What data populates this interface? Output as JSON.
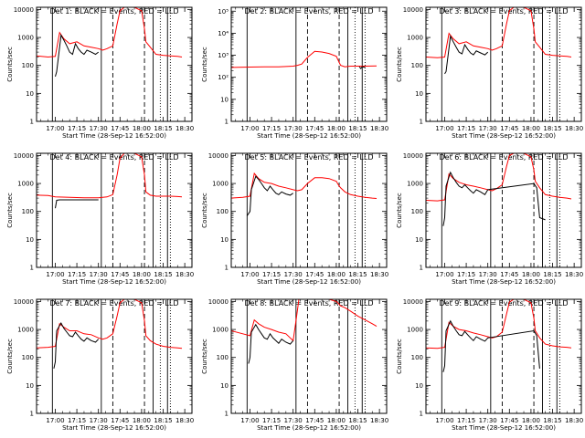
{
  "chart_data": {
    "type": "line",
    "xlabel": "Start Time (28-Sep-12 16:52:00)",
    "ylabel": "Counts/sec",
    "x_tick_labels": [
      "17:00",
      "17:15",
      "17:30",
      "17:45",
      "18:00",
      "18:15",
      "18:30"
    ],
    "y_tick_labels": [
      "1",
      "10",
      "100",
      "1000",
      "10000"
    ],
    "y_tick_labels_alt": [
      "1",
      "10",
      "10²",
      "10³",
      "10⁴",
      "10⁵"
    ],
    "x_unit": "minutes after 17:00",
    "xlim": [
      -13,
      95
    ],
    "log_y": true,
    "colors": {
      "events": "#000000",
      "lld": "#ff0000",
      "axes": "#000000"
    },
    "panels": [
      {
        "title": "Det 1: BLACK = Events, RED = LLD",
        "ylim": [
          1,
          12000
        ],
        "series": [
          {
            "name": "BLACK = Events",
            "x": [
              0,
              1,
              4,
              6,
              8,
              10,
              12,
              14,
              16,
              18,
              20,
              22,
              25,
              28,
              30
            ],
            "y": [
              40,
              60,
              1200,
              800,
              500,
              300,
              250,
              600,
              400,
              300,
              250,
              350,
              300,
              250,
              300
            ]
          },
          {
            "name": "RED = LLD",
            "x": [
              -13,
              -5,
              0,
              3,
              6,
              10,
              15,
              20,
              25,
              30,
              33,
              36,
              40,
              43,
              45,
              48,
              50,
              55,
              60,
              62,
              63,
              66,
              70,
              75,
              80,
              85,
              88
            ],
            "y": [
              220,
              200,
              210,
              1500,
              900,
              600,
              700,
              500,
              450,
              400,
              350,
              400,
              500,
              3000,
              9000,
              12000,
              12000,
              12000,
              9000,
              2000,
              700,
              450,
              250,
              230,
              220,
              210,
              200
            ]
          }
        ]
      },
      {
        "title": "Det 2: BLACK = Events, RED = LLD",
        "ylim": [
          1,
          150000
        ],
        "series": [
          {
            "name": "BLACK = Events",
            "x": [
              76,
              77,
              78,
              80
            ],
            "y": [
              300,
              250,
              300,
              280
            ]
          },
          {
            "name": "RED = LLD",
            "x": [
              -13,
              0,
              10,
              20,
              30,
              33,
              36,
              40,
              45,
              50,
              55,
              60,
              63,
              66,
              70,
              80,
              88
            ],
            "y": [
              280,
              290,
              300,
              300,
              320,
              350,
              400,
              800,
              1500,
              1400,
              1200,
              900,
              350,
              300,
              320,
              320,
              330
            ]
          }
        ]
      },
      {
        "title": "Det 3: BLACK = Events, RED = LLD",
        "ylim": [
          1,
          12000
        ],
        "series": [
          {
            "name": "BLACK = Events",
            "x": [
              0,
              1,
              4,
              6,
              8,
              10,
              12,
              14,
              16,
              18,
              20,
              22,
              25,
              28,
              30
            ],
            "y": [
              50,
              60,
              1100,
              700,
              450,
              300,
              260,
              550,
              380,
              280,
              240,
              330,
              280,
              240,
              300
            ]
          },
          {
            "name": "RED = LLD",
            "x": [
              -13,
              -5,
              0,
              3,
              6,
              10,
              15,
              20,
              25,
              30,
              33,
              36,
              40,
              43,
              45,
              48,
              50,
              55,
              60,
              62,
              63,
              66,
              70,
              75,
              80,
              85,
              88
            ],
            "y": [
              200,
              190,
              200,
              1400,
              900,
              600,
              700,
              500,
              450,
              400,
              350,
              400,
              500,
              3000,
              9000,
              12000,
              12000,
              12000,
              9000,
              2000,
              700,
              450,
              250,
              230,
              220,
              210,
              200
            ]
          }
        ]
      },
      {
        "title": "Det 4: BLACK = Events, RED = LLD",
        "ylim": [
          1,
          12000
        ],
        "series": [
          {
            "name": "BLACK = Events",
            "x": [
              0,
              1,
              3,
              10,
              20,
              30
            ],
            "y": [
              130,
              250,
              260,
              260,
              260,
              260
            ]
          },
          {
            "name": "RED = LLD",
            "x": [
              -13,
              -5,
              0,
              10,
              20,
              30,
              33,
              36,
              40,
              43,
              45,
              48,
              50,
              55,
              60,
              62,
              63,
              66,
              70,
              75,
              80,
              85,
              88
            ],
            "y": [
              380,
              370,
              330,
              320,
              310,
              310,
              320,
              330,
              400,
              2000,
              8000,
              12000,
              12000,
              12000,
              9000,
              2000,
              500,
              380,
              350,
              350,
              350,
              340,
              330
            ]
          }
        ]
      },
      {
        "title": "Det 5: BLACK = Events, RED = LLD",
        "ylim": [
          1,
          12000
        ],
        "series": [
          {
            "name": "BLACK = Events",
            "x": [
              -2,
              0,
              1,
              4,
              6,
              8,
              10,
              12,
              14,
              16,
              18,
              20,
              22,
              25,
              28,
              30
            ],
            "y": [
              70,
              100,
              600,
              1800,
              1400,
              1000,
              700,
              550,
              800,
              600,
              450,
              400,
              500,
              420,
              380,
              450
            ]
          },
          {
            "name": "RED = LLD",
            "x": [
              -13,
              -5,
              0,
              3,
              6,
              10,
              15,
              20,
              25,
              30,
              33,
              36,
              40,
              45,
              50,
              55,
              60,
              62,
              63,
              66,
              70,
              75,
              80,
              85,
              88
            ],
            "y": [
              300,
              320,
              350,
              2300,
              1500,
              1100,
              1000,
              800,
              700,
              600,
              550,
              600,
              1000,
              1600,
              1600,
              1500,
              1200,
              800,
              700,
              500,
              400,
              350,
              320,
              300,
              290
            ]
          }
        ]
      },
      {
        "title": "Det 6: BLACK = Events, RED = LLD",
        "ylim": [
          1,
          12000
        ],
        "series": [
          {
            "name": "BLACK = Events",
            "x": [
              -1,
              0,
              1,
              4,
              6,
              8,
              10,
              12,
              14,
              16,
              18,
              20,
              22,
              25,
              28,
              30,
              62,
              64,
              66,
              70
            ],
            "y": [
              30,
              60,
              800,
              2500,
              1600,
              1100,
              800,
              700,
              900,
              700,
              550,
              450,
              600,
              500,
              400,
              600,
              1000,
              700,
              60,
              50
            ]
          },
          {
            "name": "RED = LLD",
            "x": [
              -13,
              -5,
              0,
              3,
              6,
              10,
              15,
              20,
              25,
              30,
              33,
              36,
              40,
              43,
              45,
              48,
              50,
              55,
              60,
              62,
              63,
              66,
              70,
              75,
              80,
              85,
              88
            ],
            "y": [
              250,
              240,
              260,
              2200,
              1500,
              1100,
              900,
              800,
              700,
              600,
              550,
              650,
              900,
              4000,
              10000,
              12000,
              12000,
              12000,
              9000,
              3000,
              1200,
              700,
              400,
              350,
              320,
              300,
              280
            ]
          }
        ]
      },
      {
        "title": "Det 7: BLACK = Events, RED = LLD",
        "ylim": [
          1,
          12000
        ],
        "series": [
          {
            "name": "BLACK = Events",
            "x": [
              -1,
              0,
              1,
              4,
              6,
              8,
              10,
              12,
              14,
              16,
              18,
              20,
              22,
              25,
              28,
              30
            ],
            "y": [
              40,
              70,
              900,
              1700,
              1100,
              800,
              600,
              550,
              800,
              600,
              450,
              380,
              500,
              400,
              350,
              450
            ]
          },
          {
            "name": "RED = LLD",
            "x": [
              -13,
              -5,
              0,
              3,
              6,
              10,
              15,
              20,
              25,
              30,
              33,
              36,
              40,
              43,
              45,
              48,
              50,
              55,
              60,
              62,
              63,
              66,
              70,
              75,
              80,
              85,
              88
            ],
            "y": [
              220,
              230,
              250,
              1600,
              1200,
              900,
              900,
              700,
              650,
              500,
              450,
              500,
              700,
              3000,
              9000,
              12000,
              12000,
              12000,
              9000,
              2000,
              600,
              400,
              300,
              250,
              230,
              220,
              210
            ]
          }
        ]
      },
      {
        "title": "Det 8: BLACK = Events, RED = LLD",
        "ylim": [
          1,
          12000
        ],
        "series": [
          {
            "name": "BLACK = Events",
            "x": [
              -1,
              0,
              1,
              4,
              6,
              8,
              10,
              12,
              14,
              16,
              18,
              20,
              22,
              25,
              28,
              30
            ],
            "y": [
              60,
              100,
              800,
              1500,
              1000,
              700,
              500,
              450,
              700,
              500,
              400,
              320,
              450,
              350,
              300,
              400
            ]
          },
          {
            "name": "RED = LLD",
            "x": [
              -13,
              -5,
              0,
              3,
              6,
              10,
              15,
              20,
              25,
              28,
              30,
              32,
              34,
              36,
              40,
              45,
              50,
              55,
              60,
              62,
              63,
              66,
              70,
              75,
              80,
              85,
              88
            ],
            "y": [
              900,
              700,
              600,
              2200,
              1600,
              1200,
              1000,
              800,
              700,
              500,
              400,
              2000,
              12000,
              12000,
              12000,
              12000,
              12000,
              12000,
              10000,
              8000,
              7000,
              6000,
              4500,
              3000,
              2200,
              1600,
              1300
            ]
          }
        ]
      },
      {
        "title": "Det 9: BLACK = Events, RED = LLD",
        "ylim": [
          1,
          12000
        ],
        "series": [
          {
            "name": "BLACK = Events",
            "x": [
              -1,
              0,
              1,
              4,
              6,
              8,
              10,
              12,
              14,
              16,
              18,
              20,
              22,
              25,
              28,
              30,
              62,
              64,
              66
            ],
            "y": [
              30,
              50,
              900,
              2000,
              1300,
              900,
              650,
              600,
              850,
              650,
              500,
              400,
              550,
              450,
              380,
              500,
              900,
              600,
              40
            ]
          },
          {
            "name": "RED = LLD",
            "x": [
              -13,
              -5,
              0,
              3,
              6,
              10,
              15,
              20,
              25,
              30,
              33,
              36,
              40,
              43,
              45,
              48,
              50,
              55,
              60,
              62,
              63,
              66,
              70,
              75,
              80,
              85,
              88
            ],
            "y": [
              220,
              210,
              230,
              1800,
              1300,
              1000,
              900,
              750,
              650,
              550,
              500,
              550,
              800,
              3500,
              9500,
              12000,
              12000,
              12000,
              9000,
              2500,
              900,
              500,
              300,
              260,
              240,
              230,
              220
            ]
          }
        ]
      }
    ]
  }
}
